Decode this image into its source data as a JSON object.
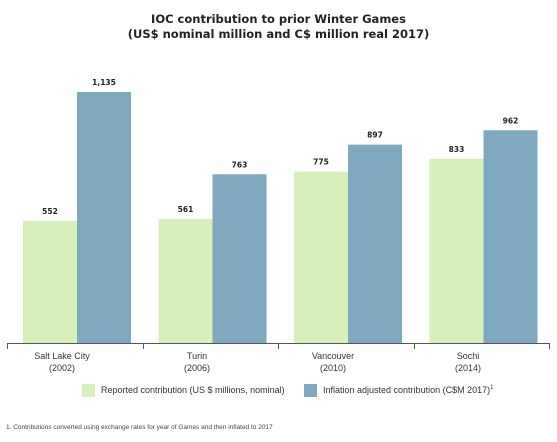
{
  "chart_data": {
    "type": "bar",
    "title_line1": "IOC contribution to prior Winter Games",
    "title_line2": "(US$ nominal million and C$ million real 2017)",
    "categories": [
      {
        "name": "Salt Lake City",
        "year": "(2002)"
      },
      {
        "name": "Turin",
        "year": "(2006)"
      },
      {
        "name": "Vancouver",
        "year": "(2010)"
      },
      {
        "name": "Sochi",
        "year": "(2014)"
      }
    ],
    "series": [
      {
        "name": "Reported contribution (US $ millions, nominal)",
        "color": "#d7f0b9",
        "values": [
          552,
          561,
          775,
          833
        ],
        "labels": [
          "552",
          "561",
          "775",
          "833"
        ]
      },
      {
        "name": "Inflation adjusted contribution (C$M 2017)",
        "color": "#7fa9c0",
        "values": [
          1135,
          763,
          897,
          962
        ],
        "labels": [
          "1,135",
          "763",
          "897",
          "962"
        ]
      }
    ],
    "ylim": [
      0,
      1135
    ],
    "legend_position": "bottom",
    "legend_note_mark": "1",
    "grid": false
  },
  "footnote": "1. Contributions converted using exchange rates for year of Games and then inflated to 2017"
}
